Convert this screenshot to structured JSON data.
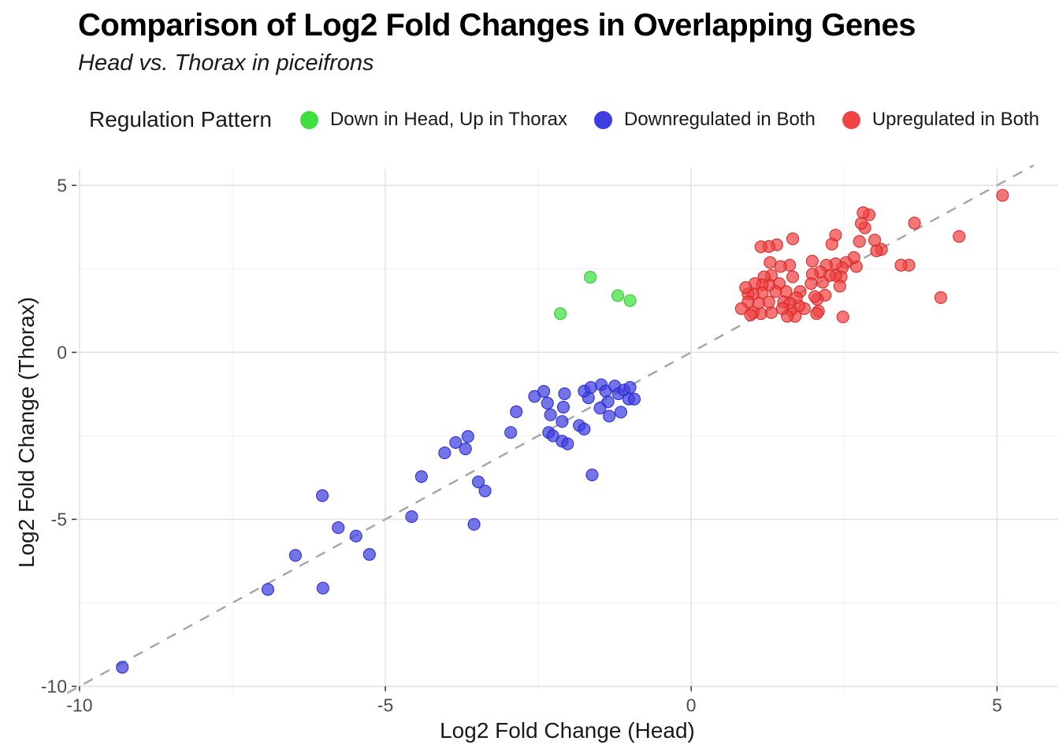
{
  "title": "Comparison of Log2 Fold Changes in Overlapping Genes",
  "subtitle": "Head vs. Thorax in piceifrons",
  "legend": {
    "title": "Regulation Pattern",
    "items": [
      {
        "label": "Down in Head, Up in Thorax",
        "color": "#3fdf3f"
      },
      {
        "label": "Downregulated in Both",
        "color": "#3e3ee0"
      },
      {
        "label": "Upregulated in Both",
        "color": "#f04343"
      }
    ]
  },
  "chart_data": {
    "type": "scatter",
    "title": "Comparison of Log2 Fold Changes in Overlapping Genes",
    "subtitle": "Head vs. Thorax in piceifrons",
    "xlabel": "Log2 Fold Change (Head)",
    "ylabel": "Log2 Fold Change (Thorax)",
    "xlim": [
      -10.05,
      6.0
    ],
    "ylim": [
      -10.2,
      5.48
    ],
    "x_ticks": [
      -10,
      -5,
      0,
      5
    ],
    "x_tick_labels": [
      "-10",
      "-5",
      "0",
      "5"
    ],
    "y_ticks": [
      5,
      0,
      -5,
      -10
    ],
    "y_tick_labels": [
      "5",
      "0",
      "-5",
      "-10"
    ],
    "x_minor_ticks": [
      -7.5,
      -2.5,
      2.5
    ],
    "y_minor_ticks": [
      2.5,
      -2.5,
      -7.5
    ],
    "grid": true,
    "legend_position": "top",
    "reference_line": {
      "type": "identity y=x",
      "style": "dashed",
      "color": "#a8a8a8"
    },
    "series": [
      {
        "name": "Down in Head, Up in Thorax",
        "color": "#3fdf3f",
        "stroke": "#2fc42f",
        "points": [
          [
            -2.14,
            1.16
          ],
          [
            -1.65,
            2.25
          ],
          [
            -1.2,
            1.7
          ],
          [
            -1.0,
            1.55
          ]
        ]
      },
      {
        "name": "Downregulated in Both",
        "color": "#3e3ee0",
        "stroke": "#2424c8",
        "points": [
          [
            -9.3,
            -9.43
          ],
          [
            -6.92,
            -7.1
          ],
          [
            -6.47,
            -6.08
          ],
          [
            -6.02,
            -7.06
          ],
          [
            -6.03,
            -4.29
          ],
          [
            -5.77,
            -5.25
          ],
          [
            -5.48,
            -5.5
          ],
          [
            -5.26,
            -6.05
          ],
          [
            -4.57,
            -4.92
          ],
          [
            -4.41,
            -3.72
          ],
          [
            -4.03,
            -3.01
          ],
          [
            -3.85,
            -2.7
          ],
          [
            -3.69,
            -2.89
          ],
          [
            -3.65,
            -2.52
          ],
          [
            -3.48,
            -3.88
          ],
          [
            -3.37,
            -4.15
          ],
          [
            -3.55,
            -5.15
          ],
          [
            -2.95,
            -2.4
          ],
          [
            -2.86,
            -1.78
          ],
          [
            -1.62,
            -3.67
          ],
          [
            -2.56,
            -1.32
          ],
          [
            -2.41,
            -1.17
          ],
          [
            -2.35,
            -1.52
          ],
          [
            -2.3,
            -1.87
          ],
          [
            -2.33,
            -2.4
          ],
          [
            -2.07,
            -1.24
          ],
          [
            -2.09,
            -1.64
          ],
          [
            -2.11,
            -2.07
          ],
          [
            -2.26,
            -2.5
          ],
          [
            -2.11,
            -2.66
          ],
          [
            -2.02,
            -2.74
          ],
          [
            -1.83,
            -2.19
          ],
          [
            -1.75,
            -2.3
          ],
          [
            -1.68,
            -1.36
          ],
          [
            -1.75,
            -1.16
          ],
          [
            -1.64,
            -1.05
          ],
          [
            -1.47,
            -0.97
          ],
          [
            -1.4,
            -1.16
          ],
          [
            -1.36,
            -1.48
          ],
          [
            -1.49,
            -1.67
          ],
          [
            -1.25,
            -1.01
          ],
          [
            -1.19,
            -1.24
          ],
          [
            -1.1,
            -1.13
          ],
          [
            -1.02,
            -1.4
          ],
          [
            -1.15,
            -1.79
          ],
          [
            -1.34,
            -1.91
          ],
          [
            -1.0,
            -1.05
          ],
          [
            -0.93,
            -1.4
          ]
        ]
      },
      {
        "name": "Upregulated in Both",
        "color": "#f04343",
        "stroke": "#d42020",
        "points": [
          [
            5.09,
            4.7
          ],
          [
            4.38,
            3.47
          ],
          [
            4.08,
            1.64
          ],
          [
            3.65,
            3.87
          ],
          [
            3.56,
            2.61
          ],
          [
            3.43,
            2.61
          ],
          [
            3.11,
            3.08
          ],
          [
            3.03,
            3.04
          ],
          [
            3.0,
            3.36
          ],
          [
            2.91,
            4.12
          ],
          [
            2.84,
            3.73
          ],
          [
            2.81,
            4.18
          ],
          [
            2.78,
            3.86
          ],
          [
            2.75,
            3.32
          ],
          [
            2.7,
            2.57
          ],
          [
            2.66,
            2.84
          ],
          [
            2.53,
            2.69
          ],
          [
            2.47,
            2.53
          ],
          [
            2.45,
            2.26
          ],
          [
            2.43,
            1.98
          ],
          [
            2.36,
            3.51
          ],
          [
            2.36,
            2.65
          ],
          [
            2.36,
            2.3
          ],
          [
            2.3,
            3.24
          ],
          [
            2.26,
            2.3
          ],
          [
            2.21,
            2.61
          ],
          [
            2.19,
            1.71
          ],
          [
            2.15,
            2.1
          ],
          [
            2.11,
            2.41
          ],
          [
            2.08,
            1.23
          ],
          [
            2.06,
            1.59
          ],
          [
            2.05,
            1.16
          ],
          [
            2.48,
            1.06
          ],
          [
            2.02,
            1.67
          ],
          [
            1.98,
            2.73
          ],
          [
            1.98,
            2.34
          ],
          [
            1.96,
            2.06
          ],
          [
            1.85,
            1.31
          ],
          [
            1.78,
            1.82
          ],
          [
            1.76,
            1.39
          ],
          [
            1.72,
            1.63
          ],
          [
            1.7,
            1.08
          ],
          [
            1.66,
            3.4
          ],
          [
            1.66,
            2.26
          ],
          [
            1.63,
            1.27
          ],
          [
            1.61,
            2.61
          ],
          [
            1.61,
            1.47
          ],
          [
            1.57,
            1.08
          ],
          [
            1.55,
            1.82
          ],
          [
            1.51,
            1.51
          ],
          [
            1.49,
            1.31
          ],
          [
            1.46,
            2.57
          ],
          [
            1.44,
            2.06
          ],
          [
            1.4,
            3.22
          ],
          [
            1.38,
            1.82
          ],
          [
            1.31,
            2.3
          ],
          [
            1.31,
            1.19
          ],
          [
            1.29,
            2.69
          ],
          [
            1.27,
            3.17
          ],
          [
            1.27,
            2.02
          ],
          [
            1.27,
            1.51
          ],
          [
            1.19,
            2.26
          ],
          [
            1.16,
            2.02
          ],
          [
            1.16,
            1.78
          ],
          [
            1.14,
            3.16
          ],
          [
            1.14,
            1.16
          ],
          [
            1.1,
            1.47
          ],
          [
            1.04,
            2.06
          ],
          [
            1.01,
            1.75
          ],
          [
            1.01,
            1.19
          ],
          [
            0.97,
            1.12
          ],
          [
            0.93,
            1.75
          ],
          [
            0.93,
            1.51
          ],
          [
            0.89,
            1.94
          ],
          [
            0.82,
            1.31
          ]
        ]
      }
    ]
  }
}
